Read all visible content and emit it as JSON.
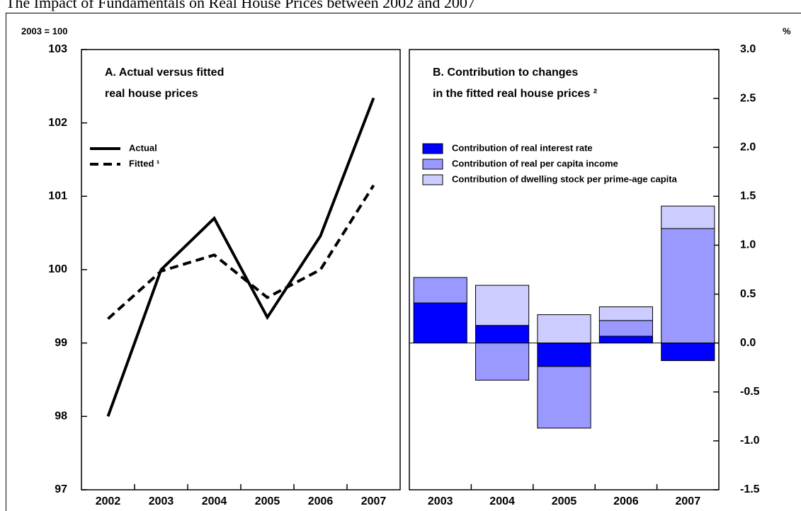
{
  "title": "The Impact of Fundamentals on Real House Prices between 2002 and 2007",
  "chart_data": [
    {
      "type": "line",
      "title": [
        "A. Actual versus fitted",
        "real house prices"
      ],
      "ylabel": "2003 = 100",
      "categories": [
        "2002",
        "2003",
        "2004",
        "2005",
        "2006",
        "2007"
      ],
      "series": [
        {
          "name": "Actual",
          "color": "#000000",
          "style": "solid",
          "values": [
            98.0,
            100.0,
            100.7,
            99.35,
            100.46,
            102.34
          ]
        },
        {
          "name": "Fitted ¹",
          "color": "#000000",
          "style": "dashed",
          "values": [
            99.33,
            99.98,
            100.2,
            99.62,
            100.0,
            101.15
          ]
        }
      ],
      "ylim": [
        97,
        103
      ],
      "yticks": [
        97,
        98,
        99,
        100,
        101,
        102,
        103
      ]
    },
    {
      "type": "stacked_bar",
      "title": [
        "B. Contribution to changes",
        "in the fitted real house prices ²"
      ],
      "ylabel": "%",
      "categories": [
        "2003",
        "2004",
        "2005",
        "2006",
        "2007"
      ],
      "series": [
        {
          "name": "Contribution of real interest rate",
          "color": "#0000ff",
          "values": [
            0.41,
            0.18,
            -0.24,
            0.07,
            -0.18
          ]
        },
        {
          "name": "Contribution of real per capita income",
          "color": "#9999ff",
          "values": [
            0.26,
            -0.38,
            -0.63,
            0.16,
            1.17
          ]
        },
        {
          "name": "Contribution of dwelling stock per prime-age capita",
          "color": "#ccccff",
          "values": [
            0,
            0.41,
            0.29,
            0.14,
            0.23
          ]
        }
      ],
      "ylim": [
        -1.5,
        3.0
      ],
      "yticks": [
        {
          "value": -1.5,
          "label": "-1.5"
        },
        {
          "value": -1.0,
          "label": "-1.0"
        },
        {
          "value": -0.5,
          "label": "-0.5"
        },
        {
          "value": 0,
          "label": "0.0"
        },
        {
          "value": 0.5,
          "label": "0.5"
        },
        {
          "value": 1.0,
          "label": "1.0"
        },
        {
          "value": 1.5,
          "label": "1.5"
        },
        {
          "value": 2.0,
          "label": "2.0"
        },
        {
          "value": 2.5,
          "label": "2.5"
        },
        {
          "value": 3.0,
          "label": "3.0"
        }
      ]
    }
  ]
}
